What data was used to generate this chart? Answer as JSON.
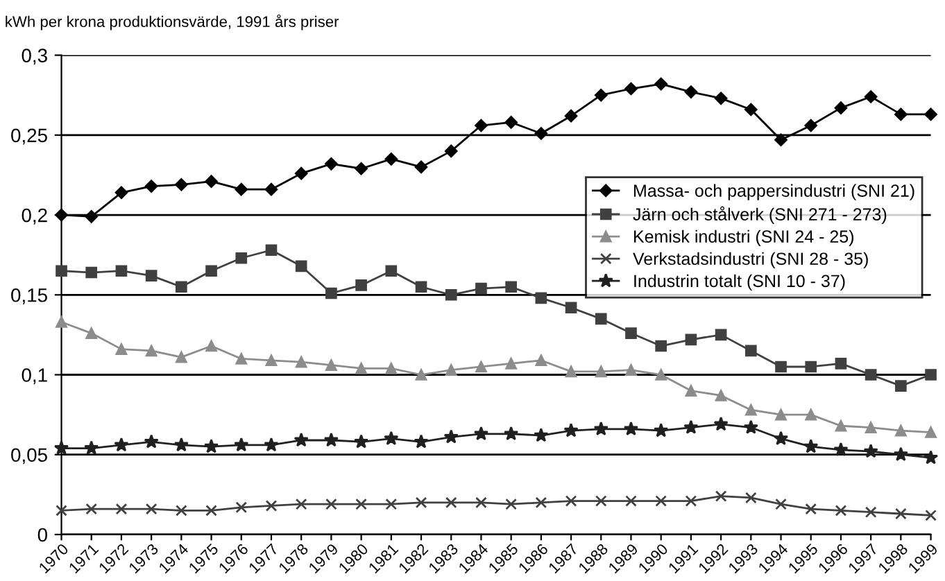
{
  "chart_data": {
    "type": "line",
    "ylabel": "kWh per krona produktionsvärde, 1991 års priser",
    "categories": [
      "1970",
      "1971",
      "1972",
      "1973",
      "1974",
      "1975",
      "1976",
      "1977",
      "1978",
      "1979",
      "1980",
      "1981",
      "1982",
      "1983",
      "1984",
      "1985",
      "1986",
      "1987",
      "1988",
      "1989",
      "1990",
      "1991",
      "1992",
      "1993",
      "1994",
      "1995",
      "1996",
      "1997",
      "1998",
      "1999"
    ],
    "series": [
      {
        "name": "Massa- och pappersindustri (SNI 21)",
        "color": "#000000",
        "marker": "diamond",
        "values": [
          0.2,
          0.199,
          0.214,
          0.218,
          0.219,
          0.221,
          0.216,
          0.216,
          0.226,
          0.232,
          0.229,
          0.235,
          0.23,
          0.24,
          0.256,
          0.258,
          0.251,
          0.262,
          0.275,
          0.279,
          0.282,
          0.277,
          0.273,
          0.266,
          0.247,
          0.256,
          0.267,
          0.274,
          0.263,
          0.263
        ]
      },
      {
        "name": "Järn och stålverk (SNI 271 - 273)",
        "color": "#404040",
        "marker": "square",
        "values": [
          0.165,
          0.164,
          0.165,
          0.162,
          0.155,
          0.165,
          0.173,
          0.178,
          0.168,
          0.151,
          0.156,
          0.165,
          0.155,
          0.15,
          0.154,
          0.155,
          0.148,
          0.142,
          0.135,
          0.126,
          0.118,
          0.122,
          0.125,
          0.115,
          0.105,
          0.105,
          0.107,
          0.1,
          0.093,
          0.1
        ]
      },
      {
        "name": "Kemisk industri (SNI 24 - 25)",
        "color": "#8c8c8c",
        "marker": "triangle",
        "values": [
          0.133,
          0.126,
          0.116,
          0.115,
          0.111,
          0.118,
          0.11,
          0.109,
          0.108,
          0.106,
          0.104,
          0.104,
          0.1,
          0.103,
          0.105,
          0.107,
          0.109,
          0.102,
          0.102,
          0.103,
          0.1,
          0.09,
          0.087,
          0.078,
          0.075,
          0.075,
          0.068,
          0.067,
          0.065,
          0.064
        ]
      },
      {
        "name": "Verkstadsindustri (SNI 28 - 35)",
        "color": "#404040",
        "marker": "cross",
        "values": [
          0.015,
          0.016,
          0.016,
          0.016,
          0.015,
          0.015,
          0.017,
          0.018,
          0.019,
          0.019,
          0.019,
          0.019,
          0.02,
          0.02,
          0.02,
          0.019,
          0.02,
          0.021,
          0.021,
          0.021,
          0.021,
          0.021,
          0.024,
          0.023,
          0.019,
          0.016,
          0.015,
          0.014,
          0.013,
          0.012
        ]
      },
      {
        "name": "Industrin totalt (SNI 10 - 37)",
        "color": "#202020",
        "marker": "star",
        "values": [
          0.054,
          0.054,
          0.056,
          0.058,
          0.056,
          0.055,
          0.056,
          0.056,
          0.059,
          0.059,
          0.058,
          0.06,
          0.058,
          0.061,
          0.063,
          0.063,
          0.062,
          0.065,
          0.066,
          0.066,
          0.065,
          0.067,
          0.069,
          0.067,
          0.06,
          0.055,
          0.053,
          0.052,
          0.05,
          0.048
        ]
      }
    ],
    "ylim": [
      0,
      0.3
    ],
    "yticks": [
      {
        "value": 0,
        "label": "0"
      },
      {
        "value": 0.05,
        "label": "0,05"
      },
      {
        "value": 0.1,
        "label": "0,1"
      },
      {
        "value": 0.15,
        "label": "0,15"
      },
      {
        "value": 0.2,
        "label": "0,2"
      },
      {
        "value": 0.25,
        "label": "0,25"
      },
      {
        "value": 0.3,
        "label": "0,3"
      }
    ],
    "grid": "y",
    "legend": "right",
    "line_style": "solid"
  }
}
